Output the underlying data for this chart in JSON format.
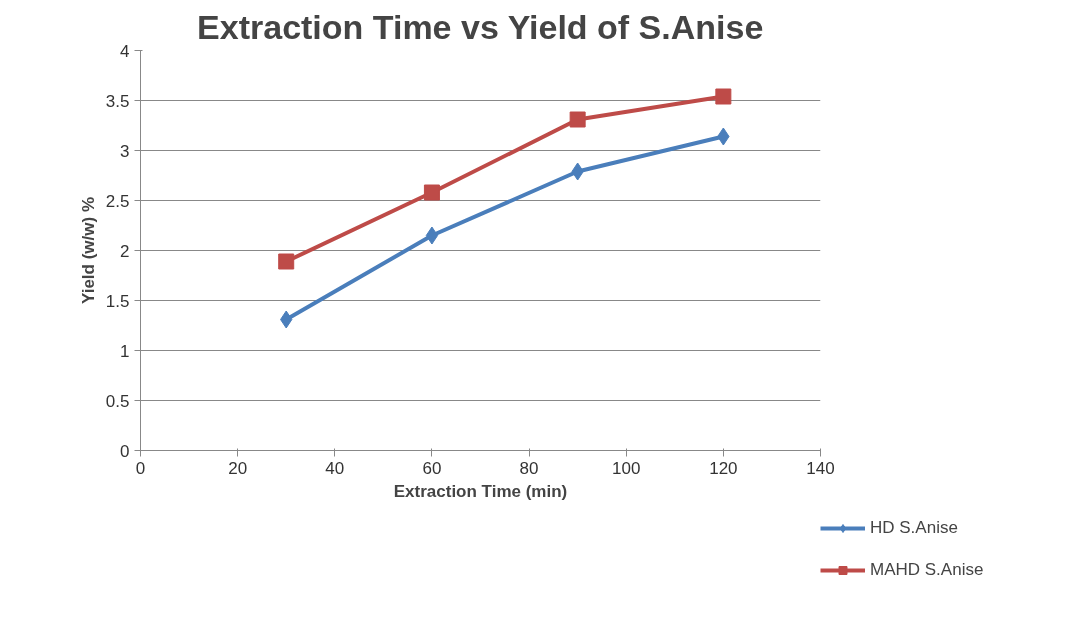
{
  "chart_data": {
    "type": "line",
    "title": "Extraction Time vs Yield of S.Anise",
    "xlabel": "Extraction Time (min)",
    "ylabel": "Yield (w/w) %",
    "x": [
      30,
      60,
      90,
      120
    ],
    "series": [
      {
        "name": "HD S.Anise",
        "color": "#4a7ebb",
        "marker": "diamond",
        "values": [
          1.31,
          2.15,
          2.79,
          3.14
        ]
      },
      {
        "name": "MAHD S.Anise",
        "color": "#be4b48",
        "marker": "square",
        "values": [
          1.89,
          2.58,
          3.31,
          3.54
        ]
      }
    ],
    "xlim": [
      0,
      140
    ],
    "xticks": [
      0,
      20,
      40,
      60,
      80,
      100,
      120,
      140
    ],
    "ylim": [
      0,
      4
    ],
    "yticks": [
      0,
      0.5,
      1,
      1.5,
      2,
      2.5,
      3,
      3.5,
      4
    ],
    "grid": "y",
    "legend": "right",
    "line_style": "solid"
  }
}
